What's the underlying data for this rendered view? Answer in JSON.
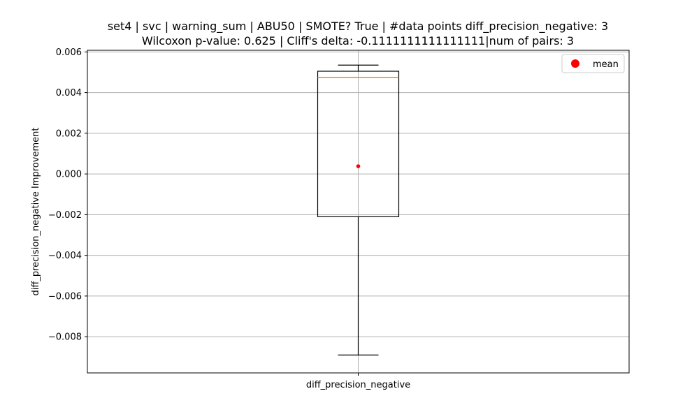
{
  "chart_data": {
    "type": "box",
    "title": [
      "set4 | svc | warning_sum | ABU50 | SMOTE? True | #data points diff_precision_negative: 3",
      "Wilcoxon p-value: 0.625 | Cliff's delta: -0.1111111111111111|num of pairs: 3"
    ],
    "xlabel": "",
    "ylabel": "diff_precision_negative Improvement",
    "categories": [
      "diff_precision_negative"
    ],
    "ylim": [
      -0.00978,
      0.00608
    ],
    "yticks": [
      -0.008,
      -0.006,
      -0.004,
      -0.002,
      0.0,
      0.002,
      0.004,
      0.006
    ],
    "ytick_labels": [
      "−0.008",
      "−0.006",
      "−0.004",
      "−0.002",
      "0.000",
      "0.002",
      "0.004",
      "0.006"
    ],
    "grid": true,
    "legend": {
      "position": "top-right",
      "entries": [
        {
          "label": "mean",
          "color": "#ff0000",
          "marker": "circle"
        }
      ]
    },
    "boxes": [
      {
        "category": "diff_precision_negative",
        "whisker_low": -0.0089,
        "q1": -0.0021,
        "median": 0.00475,
        "q3": 0.00505,
        "whisker_high": 0.00535,
        "mean": 0.00038
      }
    ],
    "colors": {
      "box": "#000000",
      "median": "#ff7f0e",
      "mean": "#ff0000",
      "grid": "#b0b0b0"
    }
  }
}
